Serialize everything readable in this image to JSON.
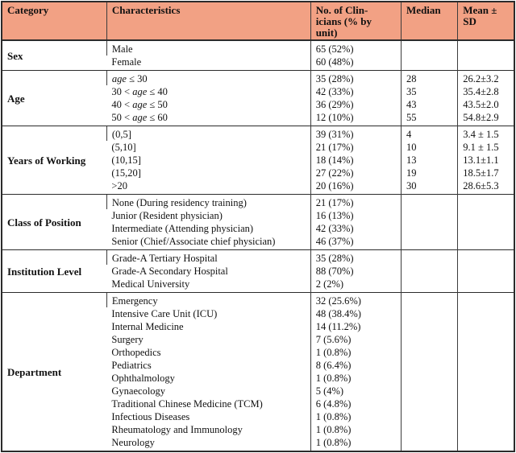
{
  "table": {
    "header_bg": "#F2A184",
    "border_color": "#2b2b2b",
    "columns": [
      {
        "label": "Category"
      },
      {
        "label": "Characteristics"
      },
      {
        "label": "No. of Clin-\nicians (% by\nunit)"
      },
      {
        "label": "Median"
      },
      {
        "label": "Mean ±\nSD"
      }
    ],
    "sections": [
      {
        "category": "Sex",
        "rows": [
          {
            "characteristic": "Male",
            "count": "65 (52%)",
            "median": "",
            "mean": ""
          },
          {
            "characteristic": "Female",
            "count": "60 (48%)",
            "median": "",
            "mean": ""
          }
        ]
      },
      {
        "category": "Age",
        "italic_token": "age",
        "rows": [
          {
            "characteristic": "age ≤ 30",
            "count": "35 (28%)",
            "median": "28",
            "mean": "26.2±3.2"
          },
          {
            "characteristic": "30 < age ≤ 40",
            "count": "42 (33%)",
            "median": "35",
            "mean": "35.4±2.8"
          },
          {
            "characteristic": "40 < age ≤ 50",
            "count": "36 (29%)",
            "median": "43",
            "mean": "43.5±2.0"
          },
          {
            "characteristic": "50 < age ≤ 60",
            "count": "12 (10%)",
            "median": "55",
            "mean": "54.8±2.9"
          }
        ]
      },
      {
        "category": "Years of Working",
        "rows": [
          {
            "characteristic": "(0,5]",
            "count": "39 (31%)",
            "median": "4",
            "mean": "3.4 ± 1.5"
          },
          {
            "characteristic": "(5,10]",
            "count": "21 (17%)",
            "median": "10",
            "mean": "9.1 ± 1.5"
          },
          {
            "characteristic": "(10,15]",
            "count": "18 (14%)",
            "median": "13",
            "mean": "13.1±1.1"
          },
          {
            "characteristic": "(15,20]",
            "count": "27 (22%)",
            "median": "19",
            "mean": "18.5±1.7"
          },
          {
            "characteristic": ">20",
            "count": "20 (16%)",
            "median": "30",
            "mean": "28.6±5.3"
          }
        ]
      },
      {
        "category": "Class of Position",
        "rows": [
          {
            "characteristic": "None (During residency training)",
            "count": "21 (17%)",
            "median": "",
            "mean": ""
          },
          {
            "characteristic": "Junior (Resident physician)",
            "count": "16 (13%)",
            "median": "",
            "mean": ""
          },
          {
            "characteristic": "Intermediate (Attending physician)",
            "count": "42 (33%)",
            "median": "",
            "mean": ""
          },
          {
            "characteristic": "Senior (Chief/Associate chief physician)",
            "count": "46 (37%)",
            "median": "",
            "mean": ""
          }
        ]
      },
      {
        "category": "Institution Level",
        "rows": [
          {
            "characteristic": "Grade-A Tertiary Hospital",
            "count": "35 (28%)",
            "median": "",
            "mean": ""
          },
          {
            "characteristic": "Grade-A Secondary Hospital",
            "count": "88 (70%)",
            "median": "",
            "mean": ""
          },
          {
            "characteristic": "Medical University",
            "count": "2 (2%)",
            "median": "",
            "mean": ""
          }
        ]
      },
      {
        "category": "Department",
        "rows": [
          {
            "characteristic": "Emergency",
            "count": "32 (25.6%)",
            "median": "",
            "mean": ""
          },
          {
            "characteristic": "Intensive Care Unit (ICU)",
            "count": "48 (38.4%)",
            "median": "",
            "mean": ""
          },
          {
            "characteristic": "Internal Medicine",
            "count": "14 (11.2%)",
            "median": "",
            "mean": ""
          },
          {
            "characteristic": "Surgery",
            "count": "7 (5.6%)",
            "median": "",
            "mean": ""
          },
          {
            "characteristic": "Orthopedics",
            "count": "1 (0.8%)",
            "median": "",
            "mean": ""
          },
          {
            "characteristic": "Pediatrics",
            "count": "8 (6.4%)",
            "median": "",
            "mean": ""
          },
          {
            "characteristic": "Ophthalmology",
            "count": "1 (0.8%)",
            "median": "",
            "mean": ""
          },
          {
            "characteristic": "Gynaecology",
            "count": "5 (4%)",
            "median": "",
            "mean": ""
          },
          {
            "characteristic": "Traditional Chinese Medicine (TCM)",
            "count": "6 (4.8%)",
            "median": "",
            "mean": ""
          },
          {
            "characteristic": "Infectious Diseases",
            "count": "1 (0.8%)",
            "median": "",
            "mean": ""
          },
          {
            "characteristic": "Rheumatology and Immunology",
            "count": "1 (0.8%)",
            "median": "",
            "mean": ""
          },
          {
            "characteristic": "Neurology",
            "count": "1 (0.8%)",
            "median": "",
            "mean": ""
          }
        ]
      }
    ]
  }
}
